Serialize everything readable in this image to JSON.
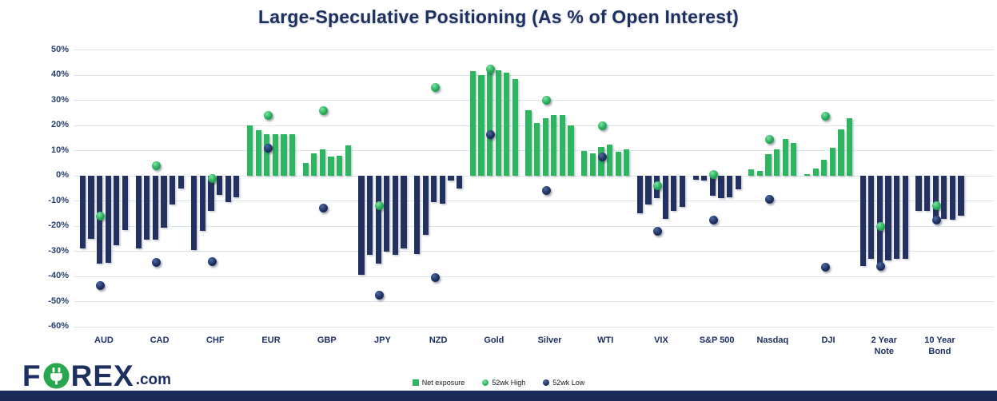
{
  "title": "Large-Speculative Positioning (As % of Open Interest)",
  "chart_data": {
    "type": "bar",
    "title": "Large-Speculative Positioning (As % of Open Interest)",
    "xlabel": "",
    "ylabel": "",
    "ylim": [
      -60,
      50
    ],
    "grid": true,
    "legend_position": "bottom",
    "ytick_values": [
      50,
      40,
      30,
      20,
      10,
      0,
      -10,
      -20,
      -30,
      -40,
      -50,
      -60
    ],
    "ytick_labels": [
      "50%",
      "40%",
      "30%",
      "20%",
      "10%",
      "0%",
      "-10%",
      "-20%",
      "-30%",
      "-40%",
      "-50%",
      "-60%"
    ],
    "categories": [
      "AUD",
      "CAD",
      "CHF",
      "EUR",
      "GBP",
      "JPY",
      "NZD",
      "Gold",
      "Silver",
      "WTI",
      "VIX",
      "S&P 500",
      "Nasdaq",
      "DJI",
      "2 Year\nNote",
      "10 Year\nBond"
    ],
    "series": [
      {
        "name": "Net exposure",
        "type": "bar-group",
        "color_positive": "#2eb560",
        "color_negative": "#22315f",
        "values": [
          [
            -29,
            -25,
            -35,
            -34.5,
            -27.5,
            -21.5
          ],
          [
            -29,
            -25.5,
            -25.5,
            -20.5,
            -11.5,
            -5
          ],
          [
            -29.5,
            -22,
            -14,
            -7.5,
            -10.5,
            -8.5
          ],
          [
            20,
            18,
            16.5,
            16.5,
            16.5,
            16.5
          ],
          [
            5,
            9,
            10.5,
            7.5,
            8,
            12
          ],
          [
            -39.5,
            -31.5,
            -35,
            -30,
            -31.5,
            -29
          ],
          [
            -31,
            -23.5,
            -10.5,
            -11,
            -2,
            -5
          ],
          [
            41.5,
            40,
            42.5,
            42,
            41,
            38.5
          ],
          [
            26,
            21,
            23,
            24,
            24,
            20
          ],
          [
            10,
            9,
            11.5,
            12.5,
            9.5,
            10.5
          ],
          [
            -15,
            -11.5,
            -9,
            -17,
            -14,
            -12.5
          ],
          [
            -1.5,
            -2,
            -8,
            -9,
            -8.5,
            -5.5
          ],
          [
            2.5,
            2,
            8.5,
            10.5,
            14.5,
            13
          ],
          [
            0.5,
            3,
            6.5,
            11,
            18.5,
            23
          ],
          [
            -36,
            -33,
            -35,
            -33.5,
            -33,
            -33
          ],
          [
            -14,
            -14,
            -17,
            -17,
            -17.5,
            -16
          ]
        ]
      },
      {
        "name": "52wk High",
        "type": "point",
        "color": "#2eb560",
        "values": [
          -16,
          4,
          -1,
          24,
          26,
          -12,
          35,
          42.5,
          30,
          20,
          -4,
          0.5,
          14.5,
          23.5,
          -20,
          -12
        ]
      },
      {
        "name": "52wk Low",
        "type": "point",
        "color": "#22315f",
        "values": [
          -43.5,
          -34.5,
          -34,
          11,
          -13,
          -47.5,
          -40.5,
          16.5,
          -6,
          7.5,
          -22,
          -17.5,
          -9.5,
          -36.5,
          -36,
          -17.5
        ]
      }
    ]
  },
  "legend": [
    {
      "label": "Net exposure",
      "marker": "square",
      "color": "#2eb560"
    },
    {
      "label": "52wk High",
      "marker": "circle",
      "color": "#2eb560"
    },
    {
      "label": "52wk Low",
      "marker": "circle",
      "color": "#22315f"
    }
  ],
  "logo": {
    "part1": "F",
    "part2": "REX",
    "suffix": ".com"
  },
  "colors": {
    "bar_positive": "#2eb560",
    "bar_negative": "#22315f",
    "title_navy": "#1c2f5e",
    "grid": "#dde6ec",
    "footer": "#1b2b57"
  }
}
